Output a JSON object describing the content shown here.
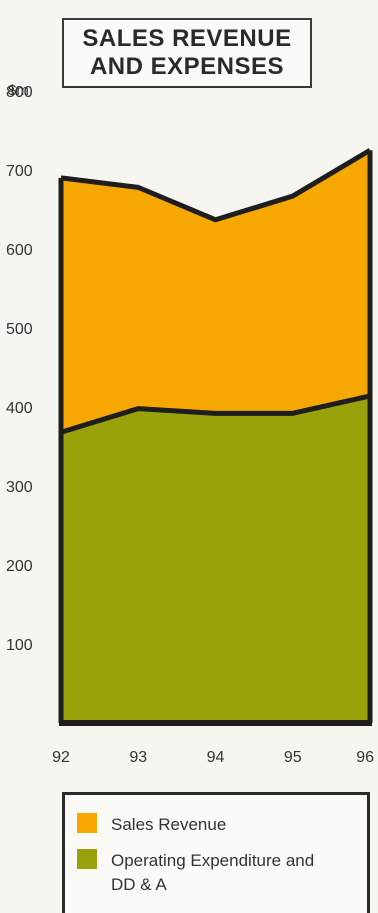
{
  "chart_data": {
    "type": "area",
    "title_lines": [
      "SALES REVENUE",
      "AND EXPENSES"
    ],
    "unit_label": "$m",
    "x": [
      "92",
      "93",
      "94",
      "95",
      "96"
    ],
    "yticks": [
      100,
      200,
      300,
      400,
      500,
      600,
      700,
      800
    ],
    "ylim": [
      0,
      800
    ],
    "series": [
      {
        "name": "Sales Revenue",
        "values": [
          690,
          678,
          637,
          667,
          725
        ],
        "color": "#f7a800"
      },
      {
        "name": "Operating Expenditure and DD & A",
        "values": [
          368,
          398,
          392,
          392,
          414
        ],
        "color": "#9aa20b"
      }
    ]
  }
}
